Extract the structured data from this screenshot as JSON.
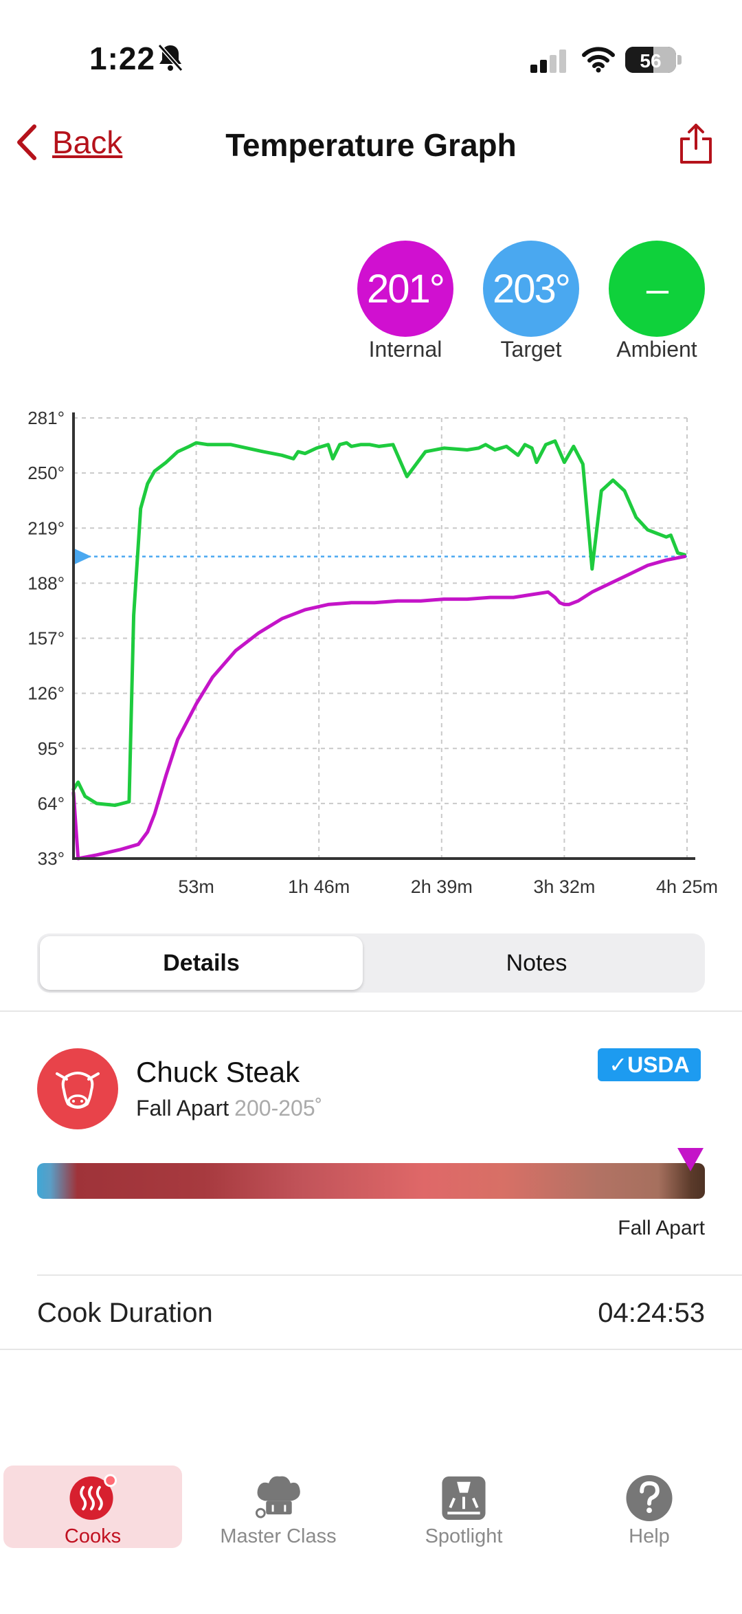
{
  "status_bar": {
    "time": "1:22",
    "battery": "56",
    "battery_level": 0.56
  },
  "nav": {
    "back_label": "Back",
    "title": "Temperature Graph"
  },
  "readings": [
    {
      "value": "201°",
      "label": "Internal",
      "color": "#d010d0"
    },
    {
      "value": "203°",
      "label": "Target",
      "color": "#4aa8f0"
    },
    {
      "value": "–",
      "label": "Ambient",
      "color": "#0fd13b"
    }
  ],
  "chart_data": {
    "type": "line",
    "y_ticks": [
      "281°",
      "250°",
      "219°",
      "188°",
      "157°",
      "126°",
      "95°",
      "64°",
      "33°"
    ],
    "x_ticks": [
      "53m",
      "1h 46m",
      "2h 39m",
      "3h 32m",
      "4h 25m"
    ],
    "ylim": [
      33,
      281
    ],
    "xlim_minutes": [
      0,
      265
    ],
    "grid": true,
    "target": {
      "value": 203,
      "color": "#4aa8f0"
    },
    "series": [
      {
        "color": "#1ecb3e",
        "x": [
          0,
          2,
          5,
          10,
          18,
          24,
          26,
          29,
          32,
          35,
          40,
          45,
          50,
          53,
          58,
          62,
          68,
          75,
          82,
          90,
          95,
          97,
          100,
          105,
          110,
          112,
          115,
          118,
          120,
          124,
          128,
          132,
          138,
          144,
          152,
          160,
          170,
          175,
          178,
          182,
          187,
          192,
          195,
          198,
          200,
          204,
          208,
          212,
          216,
          220,
          224,
          228,
          233,
          238,
          243,
          248,
          252,
          254,
          256,
          258,
          261,
          264
        ],
        "y": [
          72,
          76,
          68,
          64,
          63,
          65,
          170,
          230,
          244,
          251,
          256,
          262,
          265,
          267,
          266,
          266,
          266,
          264,
          262,
          260,
          258,
          262,
          261,
          264,
          266,
          258,
          266,
          267,
          265,
          266,
          266,
          265,
          266,
          248,
          262,
          264,
          263,
          264,
          266,
          263,
          265,
          260,
          266,
          264,
          256,
          266,
          268,
          256,
          265,
          255,
          196,
          240,
          246,
          240,
          225,
          218,
          216,
          215,
          214,
          215,
          205,
          204
        ]
      },
      {
        "color": "#c414c8",
        "x": [
          0,
          2,
          10,
          20,
          28,
          32,
          35,
          40,
          45,
          53,
          60,
          70,
          80,
          90,
          100,
          110,
          120,
          130,
          140,
          150,
          160,
          170,
          180,
          190,
          200,
          205,
          208,
          210,
          212,
          214,
          218,
          224,
          232,
          240,
          248,
          256,
          264
        ],
        "y": [
          70,
          33,
          35,
          38,
          41,
          48,
          58,
          80,
          100,
          120,
          135,
          150,
          160,
          168,
          173,
          176,
          177,
          177,
          178,
          178,
          179,
          179,
          180,
          180,
          182,
          183,
          180,
          177,
          176,
          176,
          178,
          183,
          188,
          193,
          198,
          201,
          203
        ]
      }
    ]
  },
  "tabs": {
    "details": "Details",
    "notes": "Notes"
  },
  "meat": {
    "name": "Chuck Steak",
    "doneness": "Fall Apart",
    "range": "200-205˚",
    "badge": "✓USDA",
    "marker_label": "Fall Apart"
  },
  "cook": {
    "label": "Cook Duration",
    "value": "04:24:53"
  },
  "tabbar": {
    "cooks": "Cooks",
    "master_class": "Master Class",
    "spotlight": "Spotlight",
    "help": "Help"
  }
}
